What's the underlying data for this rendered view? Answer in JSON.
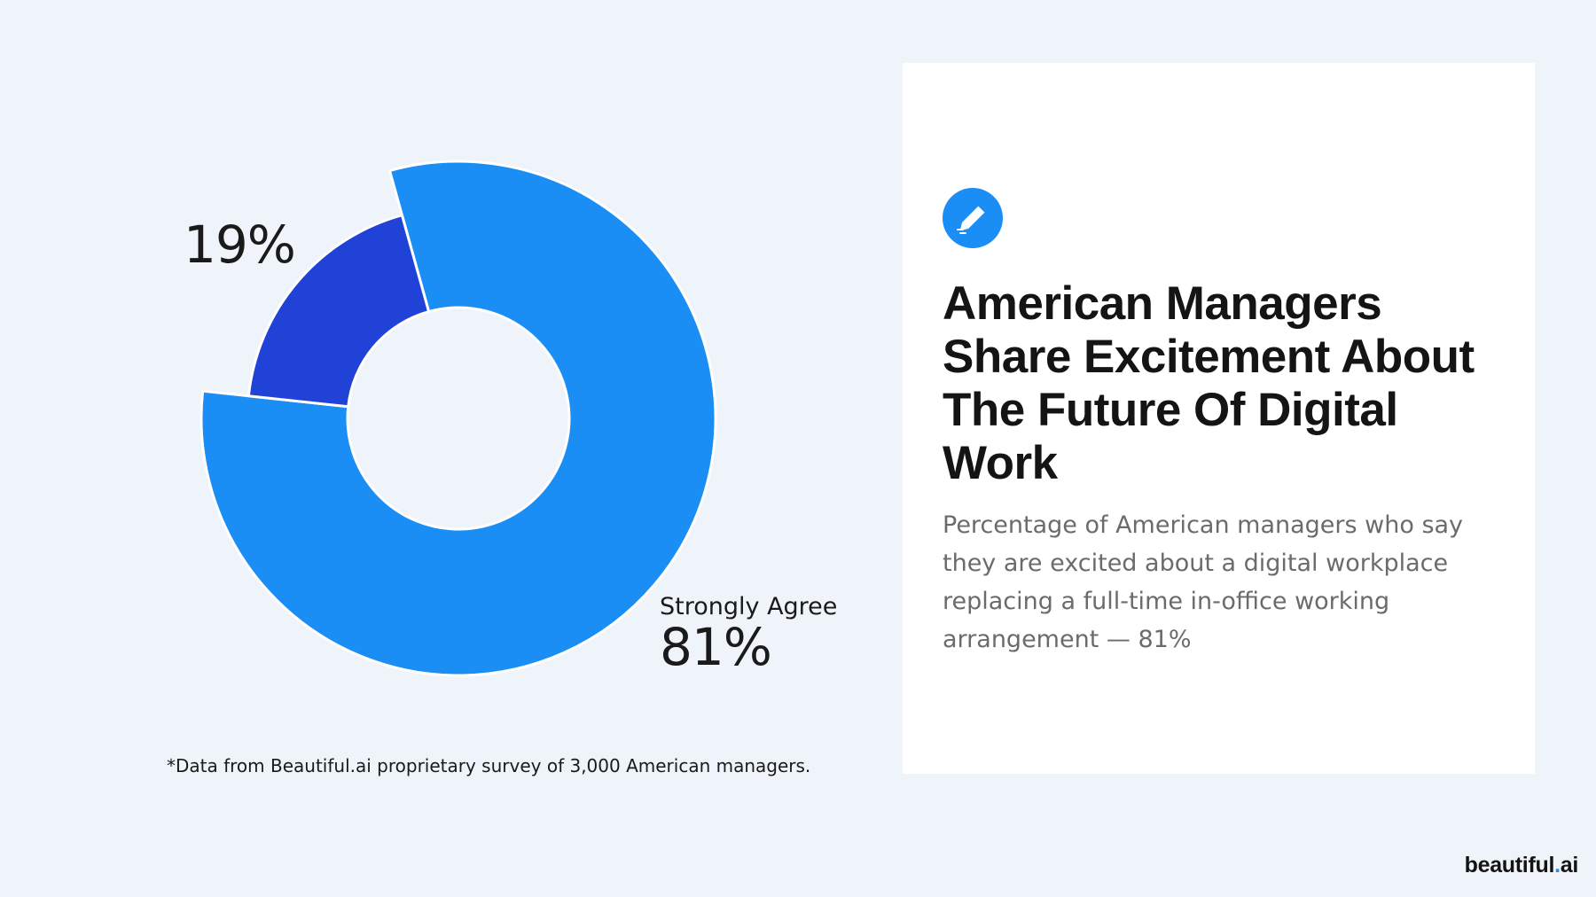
{
  "chart_data": {
    "type": "pie",
    "variant": "donut",
    "slices": [
      {
        "label": "Strongly Agree",
        "value": 81,
        "display": "81%",
        "color": "#1a8ef5"
      },
      {
        "label": "",
        "value": 19,
        "display": "19%",
        "color": "#2142d6"
      }
    ],
    "footnote": "*Data from Beautiful.ai proprietary survey of 3,000 American managers."
  },
  "card": {
    "icon": "pencil-icon",
    "title": "American Managers Share Excitement About The Future Of Digital Work",
    "description": "Percentage of American managers who say they are excited about a digital workplace replacing a full-time in-office working arrangement — 81%"
  },
  "brand": {
    "name": "beautiful",
    "dot": ".",
    "suffix": "ai"
  },
  "colors": {
    "background": "#eff3fa",
    "accent": "#1a8ef5",
    "secondary": "#2142d6",
    "card": "#ffffff"
  }
}
